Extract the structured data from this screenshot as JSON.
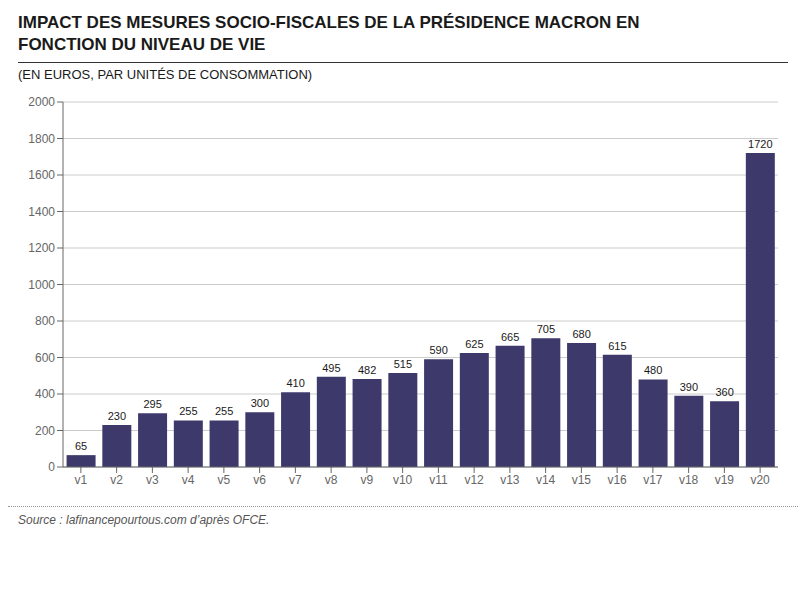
{
  "chart_data": {
    "type": "bar",
    "title": "IMPACT DES MESURES SOCIO-FISCALES DE LA PRÉSIDENCE MACRON EN\nFONCTION DU NIVEAU DE VIE",
    "subtitle": "(EN EUROS, PAR UNITÉS DE CONSOMMATION)",
    "annotations": [
      "Source : lafinancepourtous.com d’après OFCE."
    ],
    "categories": [
      "v1",
      "v2",
      "v3",
      "v4",
      "v5",
      "v6",
      "v7",
      "v8",
      "v9",
      "v10",
      "v11",
      "v12",
      "v13",
      "v14",
      "v15",
      "v16",
      "v17",
      "v18",
      "v19",
      "v20"
    ],
    "values": [
      65,
      230,
      295,
      255,
      255,
      300,
      410,
      495,
      482,
      515,
      590,
      625,
      665,
      705,
      680,
      615,
      480,
      390,
      360,
      1720
    ],
    "color": "#3d3a6b",
    "ylim": [
      0,
      2000
    ],
    "yticks": [
      0,
      200,
      400,
      600,
      800,
      1000,
      1200,
      1400,
      1600,
      1800,
      2000
    ],
    "grid": true,
    "data_labels": true
  }
}
